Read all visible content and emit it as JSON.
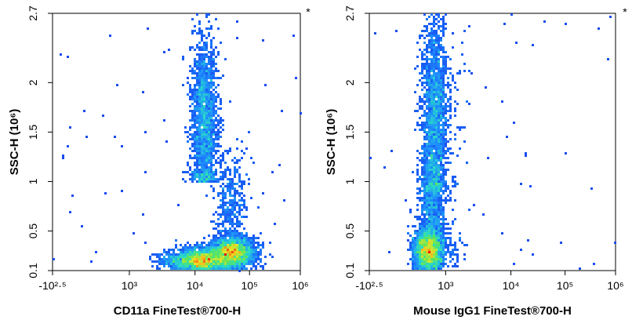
{
  "chart_data": [
    {
      "type": "scatter",
      "subtype": "flow-cytometry-density",
      "corner_mark": "*",
      "xlabel": "CD11a  FineTest®700-H",
      "ylabel": "SSC-H  (10⁶)",
      "x_scale": "biexponential",
      "y_scale": "linear",
      "ylim": [
        0.1,
        2.7
      ],
      "x_ticks": [
        {
          "value": -316,
          "label": "-10²·⁵"
        },
        {
          "value": 1000,
          "label": "10³"
        },
        {
          "value": 10000,
          "label": "10⁴"
        },
        {
          "value": 100000,
          "label": "10⁵"
        },
        {
          "value": 1000000,
          "label": "10⁶"
        }
      ],
      "y_ticks": [
        {
          "value": 0.1,
          "label": "0.1"
        },
        {
          "value": 0.5,
          "label": "0.5"
        },
        {
          "value": 1,
          "label": "1"
        },
        {
          "value": 1.5,
          "label": "1.5"
        },
        {
          "value": 2,
          "label": "2"
        },
        {
          "value": 2.7,
          "label": "2.7"
        }
      ],
      "populations": [
        {
          "x_center": 15000,
          "y_center": 1.6,
          "x_spread_decades": 0.12,
          "y_spread": 0.45,
          "y_min": 1.0,
          "y_max": 2.7,
          "density": "high"
        },
        {
          "x_center": 12000,
          "y_center": 0.2,
          "x_spread_decades": 0.25,
          "y_spread": 0.06,
          "density": "very high"
        },
        {
          "x_center": 50000,
          "y_center": 0.28,
          "x_spread_decades": 0.2,
          "y_spread": 0.08,
          "density": "very high"
        },
        {
          "x_center": 45000,
          "y_center": 0.8,
          "x_spread_decades": 0.15,
          "y_spread": 0.25,
          "density": "low"
        }
      ]
    },
    {
      "type": "scatter",
      "subtype": "flow-cytometry-density",
      "corner_mark": "*",
      "xlabel": "Mouse IgG1  FineTest®700-H",
      "ylabel": "SSC-H  (10⁶)",
      "x_scale": "biexponential",
      "y_scale": "linear",
      "ylim": [
        0.1,
        2.7
      ],
      "x_ticks": [
        {
          "value": -316,
          "label": "-10²·⁵"
        },
        {
          "value": 1000,
          "label": "10³"
        },
        {
          "value": 10000,
          "label": "10⁴"
        },
        {
          "value": 100000,
          "label": "10⁵"
        },
        {
          "value": 1000000,
          "label": "10⁶"
        }
      ],
      "y_ticks": [
        {
          "value": 0.1,
          "label": "0.1"
        },
        {
          "value": 0.5,
          "label": "0.5"
        },
        {
          "value": 1,
          "label": "1"
        },
        {
          "value": 1.5,
          "label": "1.5"
        },
        {
          "value": 2,
          "label": "2"
        },
        {
          "value": 2.7,
          "label": "2.7"
        }
      ],
      "populations": [
        {
          "x_center": 400,
          "y_center": 1.7,
          "x_spread_decades": 0.25,
          "y_spread": 0.5,
          "y_min": 0.9,
          "y_max": 2.7,
          "density": "high"
        },
        {
          "x_center": 250,
          "y_center": 0.3,
          "x_spread_decades": 0.3,
          "y_spread": 0.12,
          "density": "very high"
        },
        {
          "x_center": 350,
          "y_center": 0.8,
          "x_spread_decades": 0.25,
          "y_spread": 0.3,
          "density": "medium"
        }
      ]
    }
  ]
}
